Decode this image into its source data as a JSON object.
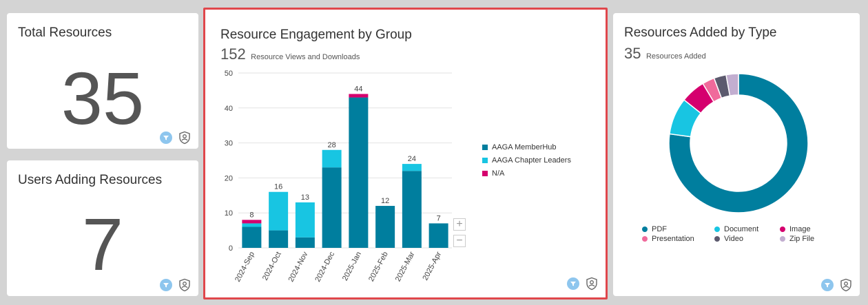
{
  "total_resources": {
    "title": "Total Resources",
    "value": "35"
  },
  "users_adding": {
    "title": "Users Adding Resources",
    "value": "7"
  },
  "engagement": {
    "title": "Resource Engagement by Group",
    "total": "152",
    "total_label": "Resource Views and Downloads",
    "zoom_in": "+",
    "zoom_out": "−"
  },
  "added_by_type": {
    "title": "Resources Added by Type",
    "total": "35",
    "total_label": "Resources Added"
  },
  "colors": {
    "memberhub": "#007e9e",
    "chapter": "#18c5e2",
    "na": "#d5006e",
    "filter_icon_bg": "#8ec6ee",
    "highlight_border": "#e0474c"
  },
  "chart_data": [
    {
      "type": "bar",
      "stacked": true,
      "title": "Resource Engagement by Group",
      "categories": [
        "2024-Sep",
        "2024-Oct",
        "2024-Nov",
        "2024-Dec",
        "2025-Jan",
        "2025-Feb",
        "2025-Mar",
        "2025-Apr"
      ],
      "series": [
        {
          "name": "AAGA MemberHub",
          "color": "#007e9e",
          "values": [
            6,
            5,
            3,
            23,
            43,
            12,
            22,
            7
          ]
        },
        {
          "name": "AAGA Chapter Leaders",
          "color": "#18c5e2",
          "values": [
            1,
            11,
            10,
            5,
            0,
            0,
            2,
            0
          ]
        },
        {
          "name": "N/A",
          "color": "#d5006e",
          "values": [
            1,
            0,
            0,
            0,
            1,
            0,
            0,
            0
          ]
        }
      ],
      "totals": [
        "8",
        "16",
        "13",
        "28",
        "44",
        "12",
        "24",
        "7"
      ],
      "ylim": [
        0,
        50
      ],
      "yticks": [
        "0",
        "10",
        "20",
        "30",
        "40",
        "50"
      ],
      "grid": true,
      "legend": "right"
    },
    {
      "type": "pie",
      "donut": true,
      "title": "Resources Added by Type",
      "labels": [
        "PDF",
        "Document",
        "Image",
        "Presentation",
        "Video",
        "Zip File"
      ],
      "values": [
        27,
        3,
        2,
        1,
        1,
        1
      ],
      "colors": [
        "#007e9e",
        "#18c5e2",
        "#d5006e",
        "#f06a9b",
        "#5c5a6e",
        "#c2aed0"
      ],
      "legend": "bottom"
    }
  ]
}
